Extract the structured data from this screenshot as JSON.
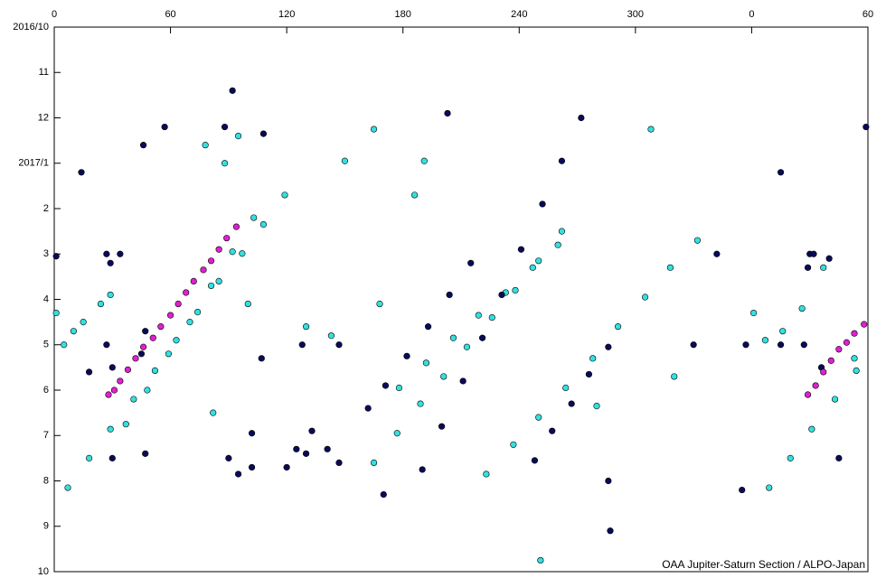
{
  "chart_data": {
    "type": "scatter",
    "annotation": "OAA Jupiter-Saturn Section / ALPO-Japan",
    "xlim": [
      0,
      420
    ],
    "xticks": [
      0,
      60,
      120,
      180,
      240,
      300,
      {
        "value": 360,
        "label": "0"
      },
      {
        "value": 420,
        "label": "60"
      }
    ],
    "ylim": [
      0,
      12
    ],
    "yticks": [
      {
        "value": 0,
        "label": "2016/10"
      },
      {
        "value": 1,
        "label": "11"
      },
      {
        "value": 2,
        "label": "12"
      },
      {
        "value": 3,
        "label": "2017/1"
      },
      {
        "value": 4,
        "label": "2"
      },
      {
        "value": 5,
        "label": "3"
      },
      {
        "value": 6,
        "label": "4"
      },
      {
        "value": 7,
        "label": "5"
      },
      {
        "value": 8,
        "label": "6"
      },
      {
        "value": 9,
        "label": "7"
      },
      {
        "value": 10,
        "label": "8"
      },
      {
        "value": 11,
        "label": "9"
      },
      {
        "value": 12,
        "label": "10"
      }
    ],
    "y_inverted": true,
    "series": [
      {
        "color": "#33e0e0",
        "x": [
          7,
          18,
          29,
          41,
          52,
          63,
          74,
          85,
          97,
          108,
          119,
          37,
          48,
          59,
          70,
          81,
          92,
          103,
          1,
          5,
          10,
          15,
          24,
          29,
          165,
          177,
          189,
          201,
          213,
          226,
          238,
          250,
          262,
          178,
          192,
          206,
          219,
          233,
          247,
          260,
          223,
          237,
          250,
          264,
          278,
          291,
          305,
          318,
          332,
          369,
          380,
          391,
          403,
          414,
          361,
          367,
          376,
          386,
          397,
          413,
          88,
          78,
          100,
          82,
          150,
          191,
          186,
          143,
          168,
          165,
          308,
          251,
          280,
          320,
          130,
          95
        ],
        "y": [
          10.15,
          9.5,
          8.86,
          8.2,
          7.57,
          6.9,
          6.28,
          5.6,
          4.99,
          4.35,
          3.7,
          8.75,
          8.0,
          7.2,
          6.5,
          5.7,
          4.95,
          4.2,
          6.3,
          7.0,
          6.7,
          6.5,
          6.1,
          5.9,
          9.6,
          8.95,
          8.3,
          7.7,
          7.05,
          6.4,
          5.8,
          5.15,
          4.5,
          7.95,
          7.4,
          6.85,
          6.35,
          5.85,
          5.3,
          4.8,
          9.85,
          9.2,
          8.6,
          7.95,
          7.3,
          6.6,
          5.95,
          5.3,
          4.7,
          10.15,
          9.5,
          8.86,
          8.2,
          7.57,
          6.3,
          6.9,
          6.7,
          6.2,
          5.3,
          7.3,
          3.0,
          2.6,
          6.1,
          8.5,
          2.95,
          2.95,
          3.7,
          6.8,
          6.1,
          2.25,
          2.25,
          11.75,
          8.35,
          7.7,
          6.6,
          2.4
        ]
      },
      {
        "color": "#0a0a5a",
        "x": [
          171,
          182,
          193,
          204,
          215,
          190,
          200,
          211,
          221,
          231,
          241,
          252,
          262,
          272,
          248,
          257,
          267,
          276,
          286,
          27,
          29,
          34,
          30,
          27,
          18,
          30,
          45,
          47,
          14,
          46,
          57,
          88,
          92,
          108,
          1,
          47,
          102,
          95,
          102,
          120,
          125,
          130,
          133,
          141,
          147,
          162,
          170,
          107,
          128,
          147,
          90,
          203,
          287,
          286,
          355,
          375,
          342,
          375,
          390,
          400,
          419,
          330,
          357,
          389,
          392,
          396,
          387,
          405
        ],
        "y": [
          7.9,
          7.25,
          6.6,
          5.9,
          5.2,
          9.75,
          8.8,
          7.8,
          6.85,
          5.9,
          4.9,
          3.9,
          2.95,
          2.0,
          9.55,
          8.9,
          8.3,
          7.65,
          7.05,
          5.0,
          5.2,
          5.0,
          7.5,
          7.0,
          7.6,
          9.5,
          7.2,
          6.7,
          3.2,
          2.6,
          2.2,
          2.2,
          1.4,
          2.35,
          5.05,
          9.4,
          8.95,
          9.85,
          9.7,
          9.7,
          9.3,
          9.4,
          8.9,
          9.3,
          9.6,
          8.4,
          10.3,
          7.3,
          7.0,
          7.0,
          9.5,
          1.9,
          11.1,
          10.0,
          10.2,
          3.2,
          5.0,
          7.0,
          5.0,
          5.1,
          2.2,
          7.0,
          7.0,
          5.3,
          5.0,
          7.5,
          7.0,
          9.5
        ]
      },
      {
        "color": "#e020d0",
        "x": [
          28,
          31,
          34,
          38,
          42,
          46,
          51,
          55,
          60,
          64,
          68,
          72,
          77,
          81,
          85,
          89,
          94,
          389,
          393,
          397,
          401,
          405,
          409,
          413,
          418
        ],
        "y": [
          8.1,
          8.0,
          7.8,
          7.55,
          7.3,
          7.05,
          6.85,
          6.6,
          6.35,
          6.1,
          5.85,
          5.6,
          5.35,
          5.15,
          4.9,
          4.65,
          4.4,
          8.1,
          7.9,
          7.6,
          7.35,
          7.1,
          6.95,
          6.75,
          6.55
        ]
      }
    ]
  }
}
